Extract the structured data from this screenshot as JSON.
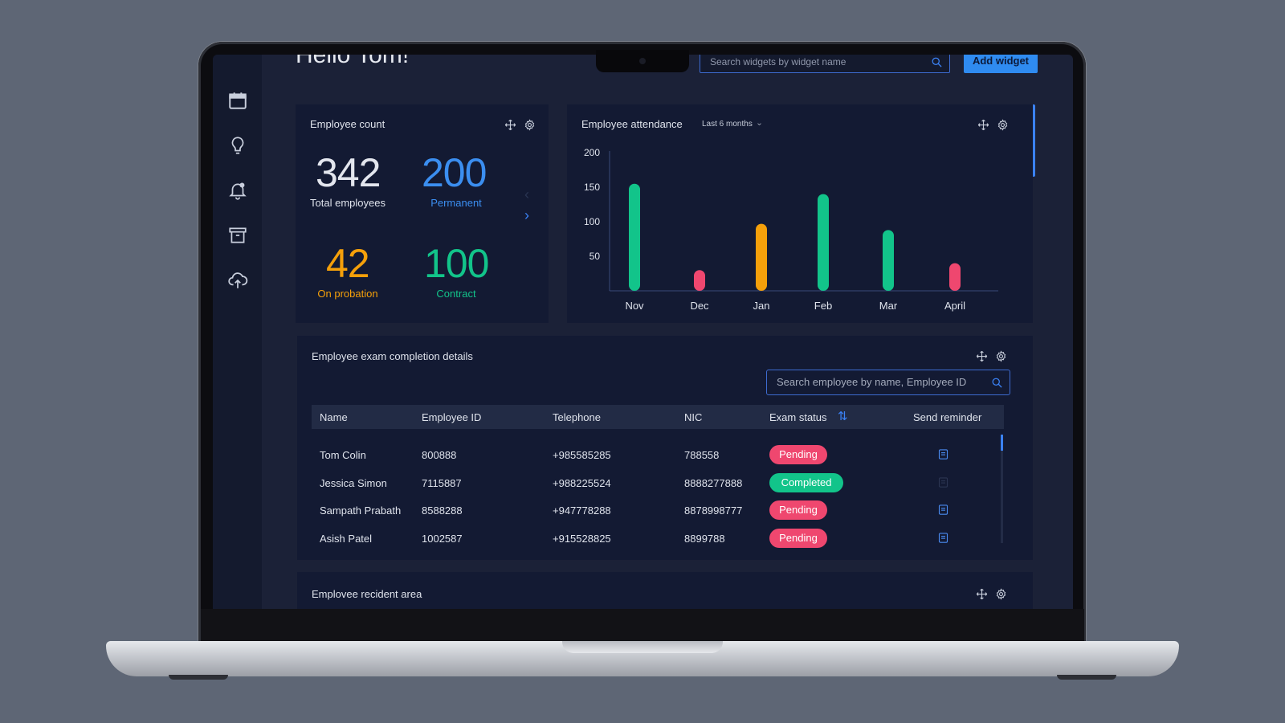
{
  "header": {
    "greeting": "Hello Tom!",
    "search_placeholder": "Search widgets by widget name",
    "add_widget_label": "Add widget"
  },
  "sidebar": {
    "icons": [
      "calendar-icon",
      "lightbulb-icon",
      "bell-icon",
      "archive-icon",
      "cloud-upload-icon"
    ]
  },
  "employee_count": {
    "title": "Employee count",
    "total": {
      "value": "342",
      "label": "Total employees",
      "color": "#e3e6ee"
    },
    "permanent": {
      "value": "200",
      "label": "Permanent",
      "color": "#3b8ef0"
    },
    "probation": {
      "value": "42",
      "label": "On probation",
      "color": "#f5a00a"
    },
    "contract": {
      "value": "100",
      "label": "Contract",
      "color": "#12c48a"
    }
  },
  "attendance": {
    "title": "Employee attendance",
    "period": "Last 6 months"
  },
  "chart_data": {
    "type": "bar",
    "title": "Employee attendance",
    "categories": [
      "Nov",
      "Dec",
      "Jan",
      "Feb",
      "Mar",
      "April"
    ],
    "values": [
      155,
      30,
      97,
      140,
      88,
      40
    ],
    "colors": [
      "#12c48a",
      "#ef476f",
      "#f5a00a",
      "#12c48a",
      "#12c48a",
      "#ef476f"
    ],
    "yticks": [
      50,
      100,
      150,
      200
    ],
    "ylim": [
      0,
      200
    ],
    "xlabel": "",
    "ylabel": "",
    "grid": false
  },
  "exam": {
    "title": "Employee exam completion details",
    "search_placeholder": "Search employee by name, Employee ID",
    "columns": [
      "Name",
      "Employee ID",
      "Telephone",
      "NIC",
      "Exam status",
      "Send reminder"
    ],
    "rows": [
      {
        "name": "Tom Colin",
        "id": "800888",
        "phone": "+985585285",
        "nic": "788558",
        "status": "Pending",
        "reminder_enabled": true
      },
      {
        "name": "Jessica Simon",
        "id": "7115887",
        "phone": "+988225524",
        "nic": "8888277888",
        "status": "Completed",
        "reminder_enabled": false
      },
      {
        "name": "Sampath Prabath",
        "id": "8588288",
        "phone": "+947778288",
        "nic": "8878998777",
        "status": "Pending",
        "reminder_enabled": true
      },
      {
        "name": "Asish Patel",
        "id": "1002587",
        "phone": "+915528825",
        "nic": "8899788",
        "status": "Pending",
        "reminder_enabled": true
      }
    ],
    "status_colors": {
      "Pending": "#ef476f",
      "Completed": "#12c48a"
    }
  },
  "resident": {
    "title": "Emplovee recident area"
  }
}
